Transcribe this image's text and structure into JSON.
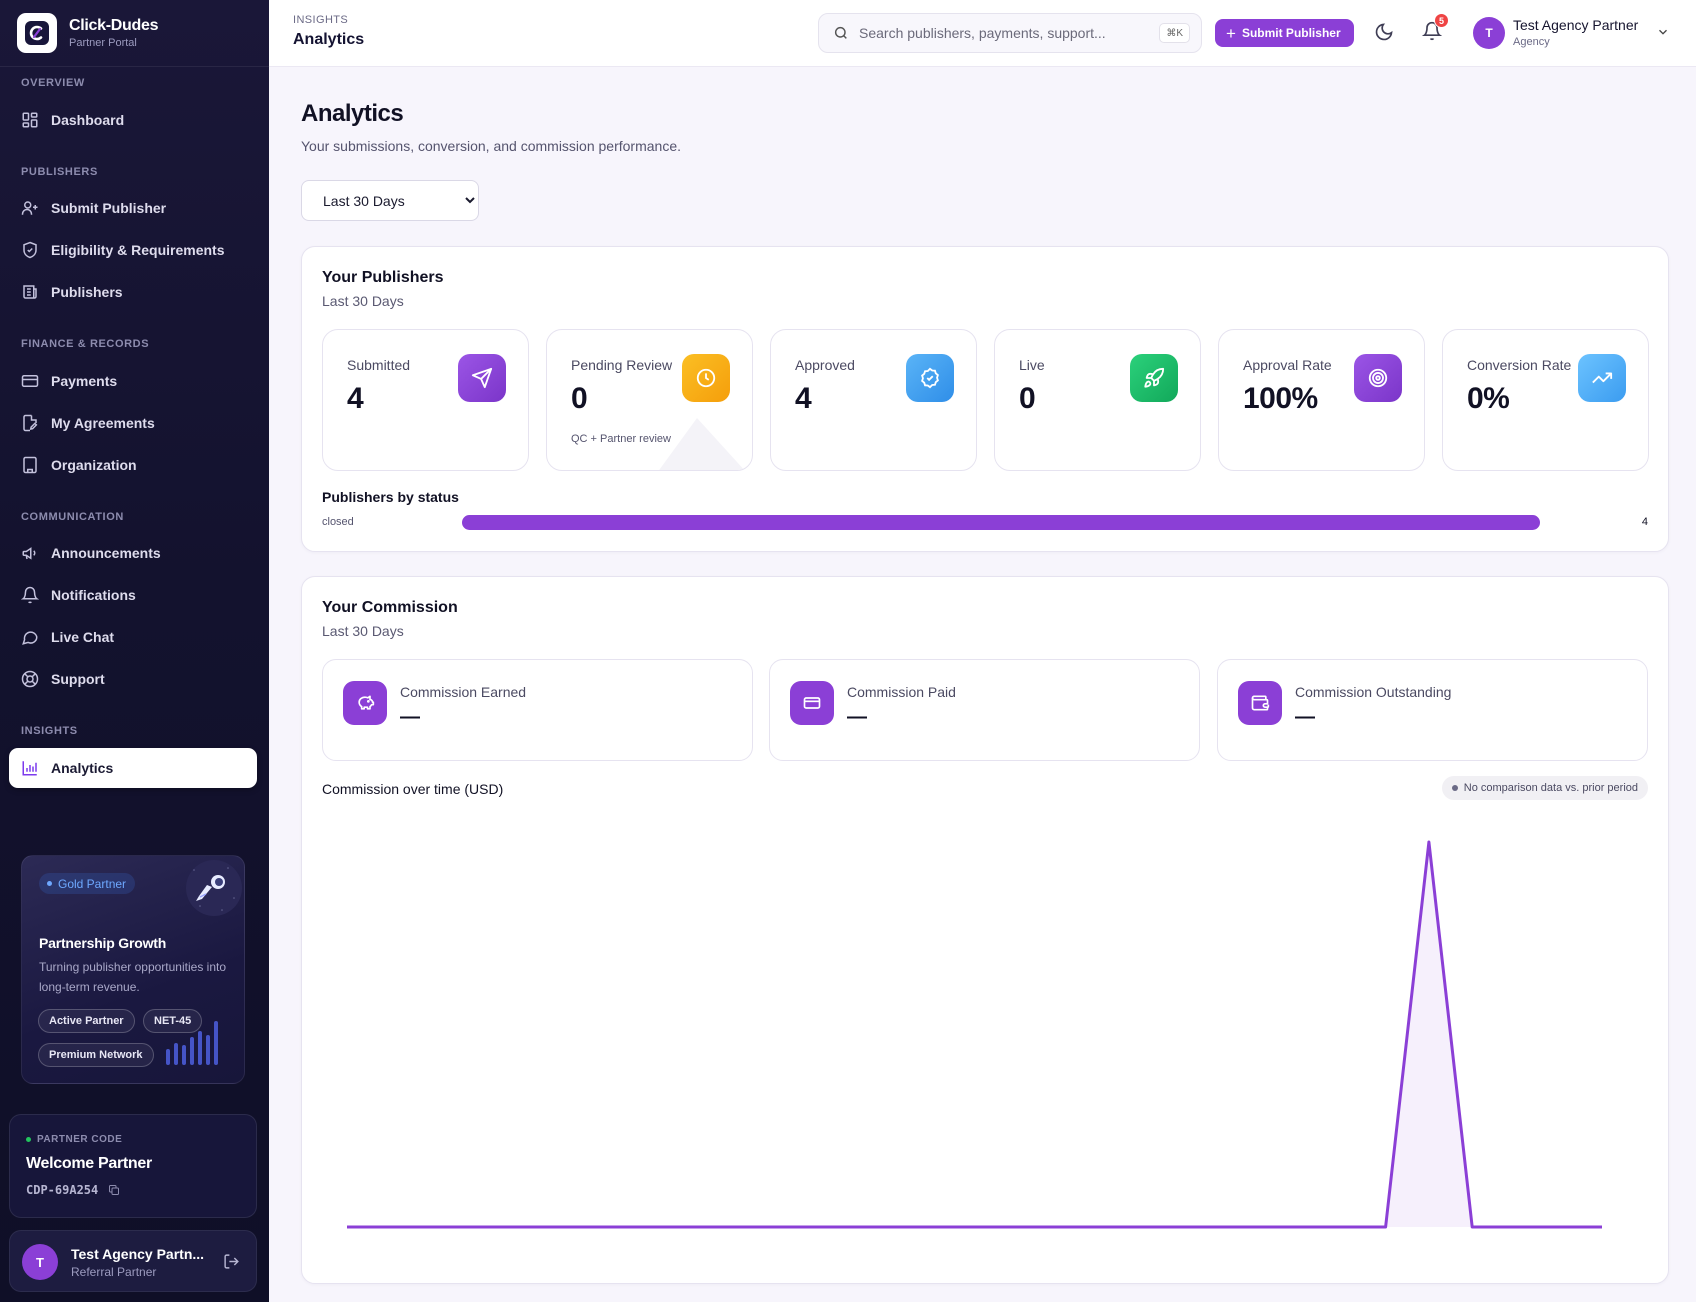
{
  "brand": {
    "name": "Click-Dudes",
    "subtitle": "Partner Portal"
  },
  "sidebar": {
    "sections": [
      {
        "title": "OVERVIEW",
        "items": [
          {
            "label": "Dashboard",
            "icon": "dashboard-icon"
          }
        ]
      },
      {
        "title": "PUBLISHERS",
        "items": [
          {
            "label": "Submit Publisher",
            "icon": "user-plus-icon"
          },
          {
            "label": "Eligibility & Requirements",
            "icon": "shield-check-icon"
          },
          {
            "label": "Publishers",
            "icon": "newspaper-icon"
          }
        ]
      },
      {
        "title": "FINANCE & RECORDS",
        "items": [
          {
            "label": "Payments",
            "icon": "credit-card-icon"
          },
          {
            "label": "My Agreements",
            "icon": "file-signature-icon"
          },
          {
            "label": "Organization",
            "icon": "building-icon"
          }
        ]
      },
      {
        "title": "COMMUNICATION",
        "items": [
          {
            "label": "Announcements",
            "icon": "megaphone-icon"
          },
          {
            "label": "Notifications",
            "icon": "bell-icon"
          },
          {
            "label": "Live Chat",
            "icon": "chat-bubble-icon"
          },
          {
            "label": "Support",
            "icon": "lifebuoy-icon"
          }
        ]
      },
      {
        "title": "INSIGHTS",
        "items": [
          {
            "label": "Analytics",
            "icon": "bar-chart-icon",
            "active": true
          }
        ]
      }
    ],
    "promo": {
      "badge": "Gold Partner",
      "title": "Partnership Growth",
      "description": "Turning publisher opportunities into long-term revenue.",
      "chips": [
        "Active Partner",
        "NET-45",
        "Premium Network"
      ]
    },
    "partner_card": {
      "label": "PARTNER CODE",
      "name": "Welcome Partner",
      "code": "CDP-69A254"
    },
    "user": {
      "initial": "T",
      "name": "Test Agency Partn...",
      "role": "Referral Partner"
    }
  },
  "header": {
    "section": "INSIGHTS",
    "title": "Analytics",
    "search_placeholder": "Search publishers, payments, support...",
    "search_shortcut": "⌘K",
    "submit_label": "Submit Publisher",
    "notification_count": "5",
    "user": {
      "initial": "T",
      "name": "Test Agency Partner",
      "role": "Agency"
    }
  },
  "page": {
    "title": "Analytics",
    "subtitle": "Your submissions, conversion, and commission performance.",
    "range": {
      "selected": "Last 30 Days",
      "options": [
        "Last 30 Days"
      ]
    }
  },
  "publishers": {
    "title": "Your Publishers",
    "subtitle": "Last 30 Days",
    "stats": [
      {
        "label": "Submitted",
        "value": "4",
        "note": "",
        "icon": "send-icon",
        "color": "#8b3fd6"
      },
      {
        "label": "Pending Review",
        "value": "0",
        "note": "QC + Partner review",
        "icon": "clock-icon",
        "color": "#f59e0b"
      },
      {
        "label": "Approved",
        "value": "4",
        "note": "",
        "icon": "badge-check-icon",
        "color": "#3b9cf0"
      },
      {
        "label": "Live",
        "value": "0",
        "note": "",
        "icon": "rocket-icon",
        "color": "#1fbf6a"
      },
      {
        "label": "Approval Rate",
        "value": "100%",
        "note": "",
        "icon": "target-icon",
        "color": "#8b3fd6"
      },
      {
        "label": "Conversion Rate",
        "value": "0%",
        "note": "",
        "icon": "trending-up-icon",
        "color": "#45a9f5"
      }
    ],
    "by_status": {
      "title": "Publishers by status",
      "rows": [
        {
          "label": "closed",
          "count": "4",
          "fraction": 1.0
        }
      ]
    }
  },
  "commission": {
    "title": "Your Commission",
    "subtitle": "Last 30 Days",
    "cards": [
      {
        "label": "Commission Earned",
        "value": "—",
        "icon": "piggy-bank-icon"
      },
      {
        "label": "Commission Paid",
        "value": "—",
        "icon": "credit-card-icon"
      },
      {
        "label": "Commission Outstanding",
        "value": "—",
        "icon": "wallet-icon"
      }
    ],
    "chart_title": "Commission over time (USD)",
    "comparison_note": "No comparison data vs. prior period"
  },
  "chart_data": {
    "type": "area",
    "title": "Commission over time (USD)",
    "x": [
      1,
      2,
      3,
      4,
      5,
      6,
      7,
      8,
      9,
      10,
      11,
      12,
      13,
      14,
      15,
      16,
      17,
      18,
      19,
      20,
      21,
      22,
      23,
      24,
      25,
      26,
      27,
      28,
      29,
      30
    ],
    "series": [
      {
        "values": [
          0,
          0,
          0,
          0,
          0,
          0,
          0,
          0,
          0,
          0,
          0,
          0,
          0,
          0,
          0,
          0,
          0,
          0,
          0,
          0,
          0,
          0,
          0,
          0,
          0,
          1,
          0,
          0,
          0,
          0
        ]
      }
    ],
    "ylim": [
      0,
      1
    ],
    "grid": false,
    "color": "#8b3fd6"
  }
}
